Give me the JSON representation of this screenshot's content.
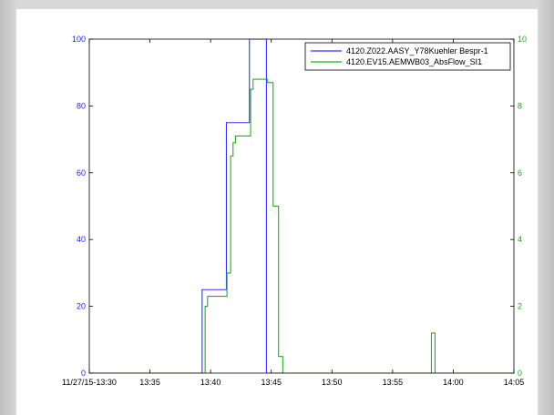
{
  "chart_data": {
    "type": "line",
    "xlabel": "",
    "ylabel_left": "",
    "ylabel_right": "",
    "x_tick_labels": [
      "11/27/15-13:30",
      "13:35",
      "13:40",
      "13:45",
      "13:50",
      "13:55",
      "14:00",
      "14:05"
    ],
    "x_tick_minutes": [
      0,
      5,
      10,
      15,
      20,
      25,
      30,
      35
    ],
    "xlim_minutes": [
      0,
      35
    ],
    "ylim_left": [
      0,
      100
    ],
    "ylim_right": [
      0,
      10
    ],
    "y_ticks_left": [
      0,
      20,
      40,
      60,
      80,
      100
    ],
    "y_ticks_right": [
      0,
      2,
      4,
      6,
      8,
      10
    ],
    "legend_position": "top-right",
    "series": [
      {
        "name": "4120.Z022.AASY_Y78Kuehler Bespr-1",
        "axis": "left",
        "color": "#3333ff",
        "x": [
          0,
          9.3,
          9.3,
          11.3,
          11.3,
          13.2,
          13.2,
          14.4,
          14.4,
          14.6,
          14.6,
          35
        ],
        "y": [
          0,
          0,
          25,
          25,
          75,
          75,
          100,
          100,
          100,
          100,
          0,
          0
        ]
      },
      {
        "name": "4120.EV15.AEMWB03_AbsFlow_SI1",
        "axis": "right",
        "color": "#22b022",
        "x": [
          0,
          9.55,
          9.55,
          9.75,
          9.75,
          10.05,
          10.05,
          11.35,
          11.35,
          11.65,
          11.65,
          11.85,
          11.85,
          12.05,
          12.05,
          12.75,
          12.75,
          13.3,
          13.3,
          13.5,
          13.5,
          14.7,
          14.7,
          15.15,
          15.15,
          15.6,
          15.6,
          15.95,
          15.95,
          28.2,
          28.2,
          28.5,
          28.5,
          35
        ],
        "y": [
          0,
          0,
          2.0,
          2.0,
          2.3,
          2.3,
          2.3,
          2.3,
          3.0,
          3.0,
          6.5,
          6.5,
          6.9,
          6.9,
          7.1,
          7.1,
          7.1,
          7.1,
          8.5,
          8.5,
          8.8,
          8.8,
          8.7,
          8.7,
          5.0,
          5.0,
          0.5,
          0.5,
          0,
          0,
          1.2,
          1.2,
          0,
          0
        ]
      }
    ]
  }
}
